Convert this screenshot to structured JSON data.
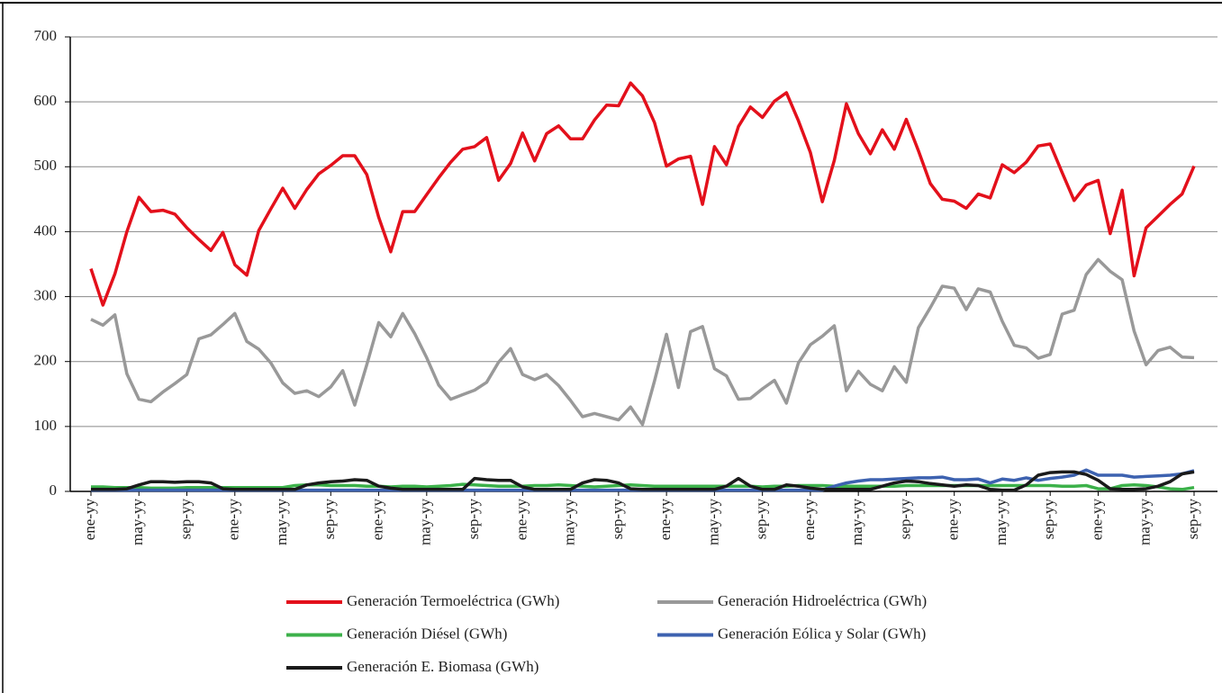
{
  "chart_data": {
    "type": "line",
    "categories": [
      "ene-yy",
      null,
      null,
      null,
      "may-yy",
      null,
      null,
      null,
      "sep-yy",
      null,
      null,
      null,
      "ene-yy",
      null,
      null,
      null,
      "may-yy",
      null,
      null,
      null,
      "sep-yy",
      null,
      null,
      null,
      "ene-yy",
      null,
      null,
      null,
      "may-yy",
      null,
      null,
      null,
      "sep-yy",
      null,
      null,
      null,
      "ene-yy",
      null,
      null,
      null,
      "may-yy",
      null,
      null,
      null,
      "sep-yy",
      null,
      null,
      null,
      "ene-yy",
      null,
      null,
      null,
      "may-yy",
      null,
      null,
      null,
      "sep-yy",
      null,
      null,
      null,
      "ene-yy",
      null,
      null,
      null,
      "may-yy",
      null,
      null,
      null,
      "sep-yy",
      null,
      null,
      null,
      "ene-yy",
      null,
      null,
      null,
      "may-yy",
      null,
      null,
      null,
      "sep-yy",
      null,
      null,
      null,
      "ene-yy",
      null,
      null,
      null,
      "may-yy",
      null,
      null,
      null,
      "sep-yy"
    ],
    "series": [
      {
        "name": "Generación Termoeléctrica (GWh)",
        "color": "#e3101b",
        "values": [
          343,
          287,
          335,
          400,
          453,
          431,
          433,
          427,
          406,
          388,
          371,
          399,
          349,
          333,
          402,
          435,
          467,
          436,
          465,
          489,
          502,
          517,
          517,
          488,
          422,
          369,
          431,
          431,
          457,
          483,
          507,
          527,
          531,
          545,
          479,
          505,
          552,
          509,
          551,
          563,
          543,
          543,
          572,
          595,
          594,
          629,
          609,
          568,
          501,
          512,
          516,
          442,
          531,
          503,
          562,
          592,
          576,
          601,
          614,
          571,
          522,
          446,
          510,
          597,
          551,
          520,
          557,
          527,
          573,
          525,
          474,
          450,
          447,
          436,
          458,
          452,
          503,
          491,
          507,
          532,
          535,
          491,
          448,
          472,
          479,
          397,
          464,
          332,
          406,
          424,
          442,
          458,
          501
        ]
      },
      {
        "name": "Generación Hidroeléctrica (GWh)",
        "color": "#999999",
        "values": [
          265,
          256,
          272,
          181,
          142,
          138,
          153,
          166,
          180,
          235,
          241,
          257,
          274,
          231,
          219,
          198,
          167,
          151,
          155,
          146,
          161,
          186,
          133,
          195,
          260,
          238,
          274,
          243,
          206,
          164,
          142,
          149,
          156,
          168,
          199,
          220,
          180,
          172,
          180,
          163,
          140,
          115,
          120,
          115,
          110,
          130,
          103,
          170,
          242,
          160,
          246,
          254,
          189,
          178,
          142,
          143,
          158,
          171,
          136,
          198,
          226,
          239,
          255,
          155,
          185,
          165,
          155,
          192,
          168,
          252,
          283,
          316,
          313,
          280,
          312,
          307,
          262,
          225,
          221,
          205,
          211,
          273,
          279,
          334,
          357,
          339,
          326,
          247,
          195,
          217,
          222,
          207,
          206
        ]
      },
      {
        "name": "Generación Diésel (GWh)",
        "color": "#3cb14a",
        "values": [
          7,
          7,
          6,
          6,
          6,
          5,
          5,
          5,
          6,
          6,
          6,
          6,
          6,
          6,
          6,
          6,
          6,
          9,
          10,
          10,
          9,
          9,
          9,
          8,
          8,
          7,
          8,
          8,
          7,
          8,
          9,
          11,
          10,
          9,
          8,
          8,
          8,
          9,
          9,
          10,
          9,
          8,
          7,
          8,
          9,
          10,
          9,
          8,
          8,
          8,
          8,
          8,
          8,
          8,
          8,
          8,
          7,
          8,
          8,
          9,
          9,
          9,
          8,
          8,
          8,
          8,
          8,
          8,
          9,
          9,
          9,
          9,
          9,
          9,
          9,
          9,
          9,
          9,
          9,
          9,
          9,
          8,
          8,
          9,
          4,
          4,
          9,
          10,
          9,
          7,
          4,
          3,
          6
        ]
      },
      {
        "name": "Generación Eólica y Solar (GWh)",
        "color": "#3d62b0",
        "values": [
          2,
          2,
          2,
          2,
          2,
          2,
          2,
          2,
          2,
          2,
          2,
          2,
          2,
          2,
          2,
          2,
          2,
          2,
          2,
          2,
          2,
          2,
          2,
          2,
          2,
          2,
          2,
          2,
          2,
          2,
          2,
          2,
          2,
          2,
          2,
          2,
          2,
          2,
          2,
          2,
          2,
          2,
          2,
          2,
          2,
          2,
          2,
          2,
          2,
          2,
          2,
          2,
          2,
          2,
          2,
          2,
          2,
          2,
          2,
          2,
          2,
          2,
          8,
          13,
          16,
          18,
          18,
          19,
          20,
          21,
          21,
          22,
          18,
          18,
          19,
          13,
          19,
          17,
          21,
          17,
          20,
          22,
          25,
          33,
          25,
          25,
          25,
          22,
          23,
          24,
          25,
          27,
          32
        ]
      },
      {
        "name": "Generación E. Biomasa (GWh)",
        "color": "#1a1a1a",
        "values": [
          3,
          3,
          3,
          4,
          10,
          15,
          15,
          14,
          15,
          15,
          13,
          4,
          3,
          3,
          3,
          3,
          3,
          3,
          10,
          13,
          15,
          16,
          18,
          17,
          8,
          5,
          3,
          3,
          3,
          3,
          3,
          3,
          20,
          18,
          17,
          17,
          7,
          3,
          3,
          3,
          3,
          13,
          18,
          17,
          13,
          4,
          3,
          3,
          3,
          3,
          3,
          3,
          3,
          8,
          20,
          8,
          3,
          3,
          10,
          8,
          5,
          3,
          3,
          3,
          3,
          3,
          8,
          13,
          16,
          15,
          12,
          10,
          8,
          10,
          9,
          3,
          2,
          2,
          10,
          25,
          29,
          30,
          30,
          26,
          17,
          4,
          3,
          3,
          4,
          8,
          15,
          27,
          30
        ]
      }
    ],
    "ylim": [
      0,
      700
    ],
    "yticks": [
      0,
      100,
      200,
      300,
      400,
      500,
      600,
      700
    ],
    "grid": true
  }
}
